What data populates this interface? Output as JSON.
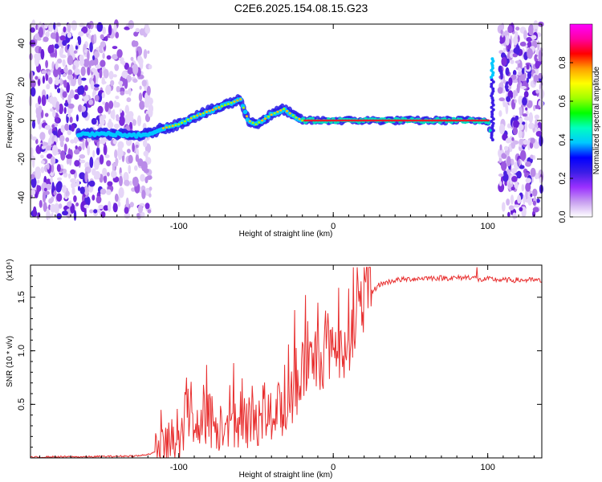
{
  "title": "C2E6.2025.154.08.15.G23",
  "chart_data": [
    {
      "type": "heatmap",
      "xlabel": "Height of straight line (km)",
      "ylabel": "Frequency (Hz)",
      "xlim": [
        -196,
        135
      ],
      "ylim": [
        -50,
        50
      ],
      "xticks": [
        -100,
        0,
        100
      ],
      "yticks": [
        -40,
        -20,
        0,
        20,
        40
      ],
      "colorbar": {
        "label": "Normalized spectral amplitude",
        "range": [
          0,
          1
        ],
        "ticks": [
          "0.0",
          "0.2",
          "0.4",
          "0.6",
          "0.8"
        ],
        "colors": [
          "#ffffff",
          "#c8a0f0",
          "#9b30ff",
          "#3c1ee6",
          "#0000ff",
          "#00c8ff",
          "#00ffc0",
          "#00ff00",
          "#a0ff00",
          "#ffff00",
          "#ffa000",
          "#ff0000",
          "#ff00a0",
          "#ff00ff"
        ]
      },
      "trace": {
        "x": [
          -165,
          -150,
          -140,
          -130,
          -120,
          -110,
          -100,
          -90,
          -80,
          -70,
          -60,
          -55,
          -50,
          -40,
          -32,
          -25,
          -20,
          -10,
          0,
          20,
          50,
          80,
          100,
          103
        ],
        "y": [
          -7,
          -7,
          -7,
          -8,
          -7,
          -4,
          -2,
          2,
          5,
          8,
          11,
          0,
          -2,
          3,
          6,
          2,
          0,
          0,
          0,
          0,
          0,
          0,
          0,
          -8
        ]
      }
    },
    {
      "type": "line",
      "xlabel": "Height of straight line (km)",
      "ylabel": "SNR (10 * v/v)",
      "multiplier": "(x10⁴)",
      "xlim": [
        -196,
        135
      ],
      "ylim": [
        0,
        1.8
      ],
      "xticks": [
        -100,
        0,
        100
      ],
      "yticks": [
        0.5,
        1.0,
        1.5
      ],
      "color": "#e83030",
      "x": [
        -196,
        -180,
        -160,
        -140,
        -125,
        -115,
        -110,
        -105,
        -100,
        -95,
        -90,
        -85,
        -80,
        -75,
        -70,
        -65,
        -60,
        -55,
        -50,
        -45,
        -40,
        -35,
        -30,
        -25,
        -22,
        -20,
        -15,
        -10,
        -5,
        0,
        5,
        10,
        15,
        20,
        25,
        30,
        40,
        50,
        60,
        70,
        80,
        90,
        95,
        100,
        110,
        120,
        130,
        135
      ],
      "y": [
        0.005,
        0.01,
        0.01,
        0.015,
        0.02,
        0.05,
        0.08,
        0.12,
        0.2,
        0.4,
        0.3,
        0.45,
        0.35,
        0.3,
        0.4,
        0.35,
        0.3,
        0.35,
        0.4,
        0.35,
        0.4,
        0.45,
        0.5,
        0.6,
        0.75,
        0.8,
        0.85,
        0.95,
        1.0,
        1.1,
        1.05,
        1.15,
        1.3,
        1.45,
        1.55,
        1.62,
        1.66,
        1.67,
        1.68,
        1.68,
        1.68,
        1.69,
        1.66,
        1.67,
        1.66,
        1.66,
        1.66,
        1.65
      ],
      "peaks": [
        {
          "x": -95,
          "y": 0.75
        },
        {
          "x": -80,
          "y": 0.6
        },
        {
          "x": -60,
          "y": 0.62
        },
        {
          "x": -45,
          "y": 0.55
        },
        {
          "x": -35,
          "y": 0.68
        },
        {
          "x": -25,
          "y": 1.38
        },
        {
          "x": -18,
          "y": 1.52
        },
        {
          "x": -10,
          "y": 1.45
        },
        {
          "x": 10,
          "y": 1.58
        },
        {
          "x": 93,
          "y": 1.78
        }
      ]
    }
  ]
}
